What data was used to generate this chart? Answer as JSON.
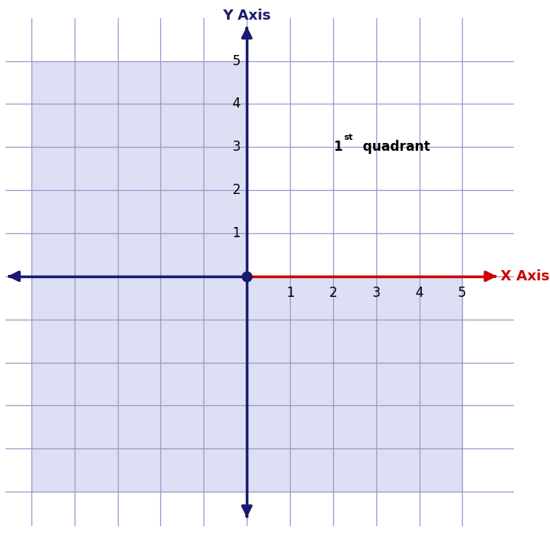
{
  "title_y": "Y Axis",
  "title_x": "X Axis",
  "grid_range_min": -5,
  "grid_range_max": 5,
  "tick_values_positive": [
    1,
    2,
    3,
    4,
    5
  ],
  "background_color_other": "#dde0f5",
  "background_color_q1": "#ffffff",
  "grid_color": "#9999cc",
  "axis_color_dark": "#1a1a6e",
  "axis_color_x_positive": "#cc0000",
  "origin_dot_color": "#1a1a6e",
  "figure_bg": "#ffffff",
  "axis_label_fontsize": 13,
  "tick_fontsize": 12,
  "quadrant_label_fontsize": 12,
  "arrow_lw": 2.5,
  "grid_linewidth": 0.9
}
